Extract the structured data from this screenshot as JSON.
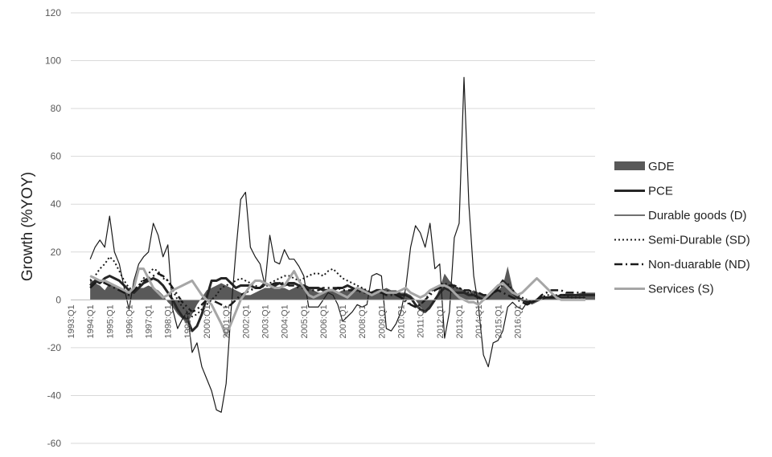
{
  "chart_data": {
    "type": "line",
    "ylabel": "Growth (%YOY)",
    "ylim": [
      -60,
      120
    ],
    "yticks": [
      -60,
      -40,
      -20,
      0,
      20,
      40,
      60,
      80,
      100,
      120
    ],
    "x_start": "1993:Q1",
    "x_tick_labels": [
      "1993:Q1",
      "1994:Q1",
      "1995:Q1",
      "1996:Q1",
      "1997:Q1",
      "1998:Q1",
      "1999:Q1",
      "2000:Q1",
      "2001:Q1",
      "2002:Q1",
      "2003:Q1",
      "2004:Q1",
      "2005:Q1",
      "2006:Q1",
      "2007:Q1",
      "2008:Q1",
      "2009:Q1",
      "2010:Q1",
      "2011:Q1",
      "2012:Q1",
      "2013:Q1",
      "2014:Q1",
      "2015:Q1",
      "2016:Q1"
    ],
    "grid": "horizontal",
    "legend_position": "right",
    "series": [
      {
        "name": "GDE",
        "kind": "area",
        "color": "#595959",
        "values": [
          null,
          null,
          null,
          null,
          9,
          7,
          6,
          4,
          7,
          6,
          5,
          3,
          3,
          4,
          5,
          5,
          6,
          5,
          4,
          2,
          -1,
          -3,
          -6,
          -8,
          -10,
          -6,
          -2,
          1,
          4,
          5,
          6,
          7,
          6,
          5,
          4,
          3,
          2,
          2,
          3,
          4,
          5,
          5,
          6,
          5,
          5,
          4,
          5,
          6,
          6,
          5,
          4,
          3,
          3,
          4,
          4,
          3,
          4,
          4,
          5,
          5,
          5,
          4,
          3,
          3,
          4,
          5,
          4,
          4,
          3,
          3,
          2,
          0,
          -3,
          -5,
          -4,
          0,
          5,
          11,
          8,
          6,
          5,
          4,
          3,
          4,
          3,
          2,
          2,
          3,
          4,
          6,
          14,
          5,
          2,
          0,
          -1,
          -2,
          -1,
          0,
          1,
          2,
          2,
          2,
          2,
          2,
          2,
          3,
          3,
          3,
          3
        ]
      },
      {
        "name": "PCE",
        "kind": "line",
        "color": "#262626",
        "width": 3,
        "values": [
          null,
          null,
          null,
          null,
          6,
          8,
          7,
          9,
          10,
          9,
          8,
          6,
          4,
          3,
          5,
          7,
          8,
          9,
          8,
          6,
          3,
          0,
          -4,
          -7,
          -8,
          -13,
          -11,
          -6,
          1,
          8,
          8,
          9,
          9,
          7,
          5,
          6,
          6,
          6,
          5,
          5,
          7,
          6,
          6,
          7,
          6,
          7,
          7,
          6,
          6,
          5,
          5,
          5,
          4,
          4,
          4,
          5,
          5,
          6,
          5,
          4,
          4,
          3,
          3,
          4,
          4,
          3,
          3,
          3,
          2,
          2,
          1,
          -2,
          -4,
          -5,
          -3,
          0,
          3,
          5,
          4,
          3,
          3,
          3,
          2,
          2,
          1,
          0,
          1,
          3,
          5,
          8,
          6,
          3,
          1,
          0,
          -1,
          -1,
          0,
          1,
          1,
          1,
          1,
          2,
          2,
          2,
          2,
          2,
          2,
          2,
          2
        ]
      },
      {
        "name": "Durable goods (D)",
        "kind": "line",
        "color": "#1a1a1a",
        "width": 1.2,
        "values": [
          null,
          null,
          null,
          null,
          17,
          22,
          25,
          22,
          35,
          20,
          15,
          5,
          -4,
          8,
          15,
          18,
          20,
          32,
          27,
          18,
          23,
          -4,
          -12,
          -8,
          -5,
          -22,
          -18,
          -28,
          -33,
          -38,
          -46,
          -47,
          -35,
          -5,
          20,
          42,
          45,
          22,
          18,
          15,
          6,
          27,
          16,
          15,
          21,
          17,
          17,
          14,
          10,
          -3,
          -3,
          -3,
          0,
          3,
          2,
          -2,
          -9,
          -7,
          -5,
          -2,
          -3,
          -2,
          10,
          11,
          10,
          -12,
          -13,
          -10,
          -5,
          5,
          22,
          31,
          28,
          22,
          32,
          13,
          15,
          -16,
          -5,
          26,
          32,
          93,
          40,
          10,
          -3,
          -23,
          -28,
          -18,
          -17,
          -13,
          -3,
          -1,
          -3,
          -4,
          -1,
          -1,
          0,
          0,
          1,
          1,
          1,
          1,
          1,
          1,
          1,
          1,
          1
        ]
      },
      {
        "name": "Semi-Durable (SD)",
        "kind": "line",
        "color": "#1a1a1a",
        "width": 2,
        "dash": "2,3",
        "values": [
          null,
          null,
          null,
          null,
          8,
          10,
          13,
          15,
          18,
          16,
          12,
          8,
          5,
          4,
          6,
          9,
          11,
          13,
          12,
          9,
          8,
          4,
          0,
          -3,
          -5,
          -7,
          -6,
          -4,
          -2,
          0,
          2,
          5,
          6,
          7,
          8,
          9,
          8,
          7,
          6,
          5,
          6,
          7,
          8,
          9,
          10,
          10,
          9,
          8,
          9,
          10,
          11,
          11,
          10,
          12,
          13,
          11,
          9,
          8,
          7,
          6,
          5,
          4,
          3,
          3,
          4,
          4,
          3,
          2,
          1,
          -1,
          -2,
          -3,
          -2,
          0,
          3,
          5,
          6,
          7,
          6,
          5,
          5,
          4,
          3,
          2,
          1,
          0,
          1,
          3,
          5,
          6,
          7,
          4,
          2,
          1,
          0,
          -1,
          0,
          1,
          2,
          2,
          2,
          2,
          2,
          1,
          1,
          1,
          1
        ]
      },
      {
        "name": "Non-duarable (ND)",
        "kind": "line",
        "color": "#1a1a1a",
        "width": 2.5,
        "dash": "10,4,2,4",
        "values": [
          null,
          null,
          null,
          null,
          5,
          7,
          8,
          7,
          6,
          5,
          4,
          3,
          2,
          4,
          6,
          8,
          9,
          10,
          11,
          10,
          8,
          5,
          2,
          -1,
          -3,
          -5,
          -4,
          -2,
          0,
          0,
          -1,
          -2,
          -3,
          -2,
          0,
          2,
          3,
          4,
          5,
          5,
          6,
          6,
          7,
          7,
          7,
          6,
          6,
          5,
          5,
          4,
          4,
          4,
          5,
          5,
          5,
          5,
          4,
          4,
          4,
          4,
          3,
          3,
          3,
          3,
          3,
          2,
          2,
          2,
          1,
          0,
          -2,
          -3,
          -2,
          0,
          2,
          4,
          5,
          6,
          6,
          6,
          5,
          4,
          4,
          3,
          3,
          2,
          2,
          3,
          4,
          3,
          2,
          1,
          0,
          -1,
          -2,
          -1,
          0,
          2,
          3,
          4,
          4,
          4,
          3,
          3,
          3,
          3,
          3
        ]
      },
      {
        "name": "Services (S)",
        "kind": "line",
        "color": "#a6a6a6",
        "width": 3,
        "values": [
          null,
          null,
          null,
          null,
          10,
          9,
          8,
          8,
          7,
          6,
          5,
          4,
          3,
          5,
          13,
          13,
          9,
          5,
          3,
          1,
          2,
          4,
          5,
          6,
          7,
          8,
          5,
          2,
          0,
          -2,
          -6,
          -10,
          -15,
          -10,
          -5,
          0,
          3,
          6,
          8,
          8,
          7,
          6,
          5,
          5,
          6,
          9,
          12,
          8,
          5,
          2,
          1,
          2,
          3,
          4,
          4,
          3,
          2,
          1,
          3,
          5,
          4,
          3,
          2,
          3,
          4,
          3,
          3,
          3,
          4,
          5,
          3,
          2,
          1,
          2,
          4,
          5,
          6,
          6,
          5,
          3,
          1,
          0,
          -1,
          -1,
          -2,
          0,
          2,
          4,
          6,
          7,
          5,
          3,
          2,
          3,
          5,
          7,
          9,
          7,
          5,
          3,
          1,
          0,
          0,
          0,
          0,
          0,
          0
        ]
      }
    ]
  }
}
